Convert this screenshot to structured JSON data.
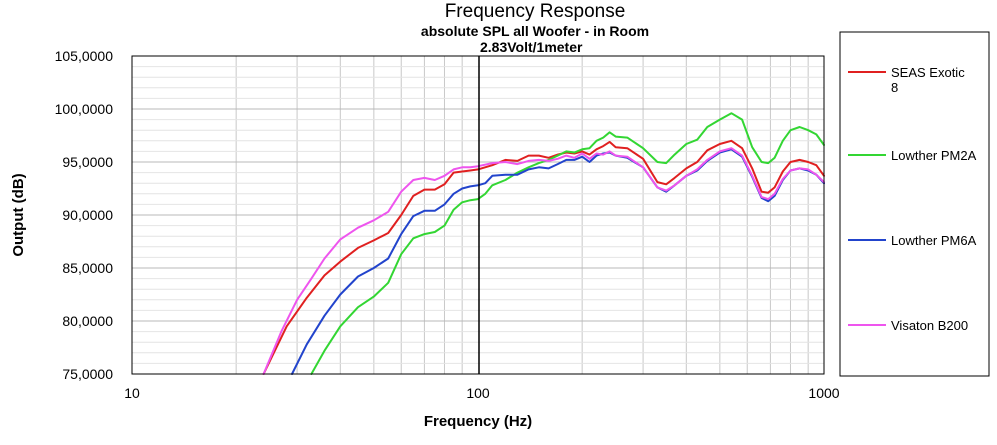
{
  "chart_data": {
    "type": "line",
    "title": "Frequency Response",
    "subtitle": "absolute SPL all Woofer - in Room",
    "annotation": "2.83Volt/1meter",
    "xlabel": "Frequency (Hz)",
    "ylabel": "Output (dB)",
    "x_scale": "log",
    "xlim": [
      10,
      1000
    ],
    "ylim": [
      75,
      105
    ],
    "x_ticks": [
      10,
      100,
      1000
    ],
    "x_tick_labels": [
      "10",
      "100",
      "1000"
    ],
    "y_ticks": [
      75,
      80,
      85,
      90,
      95,
      100,
      105
    ],
    "y_tick_labels": [
      "75,0000",
      "80,0000",
      "85,0000",
      "90,0000",
      "95,0000",
      "100,0000",
      "105,0000"
    ],
    "grid": true,
    "legend_position": "right",
    "series": [
      {
        "name": "SEAS  Exotic 8",
        "color": "#e02020",
        "x": [
          24,
          28,
          32,
          36,
          40,
          45,
          50,
          55,
          60,
          65,
          70,
          75,
          80,
          85,
          90,
          95,
          100,
          110,
          120,
          130,
          140,
          150,
          160,
          170,
          180,
          190,
          200,
          210,
          220,
          230,
          240,
          250,
          270,
          300,
          330,
          350,
          370,
          400,
          430,
          460,
          500,
          540,
          580,
          620,
          660,
          690,
          720,
          760,
          800,
          850,
          900,
          950,
          1000
        ],
        "y": [
          75.0,
          79.5,
          82.2,
          84.3,
          85.6,
          86.9,
          87.6,
          88.3,
          90.0,
          91.8,
          92.4,
          92.4,
          92.9,
          94.0,
          94.1,
          94.2,
          94.3,
          94.7,
          95.2,
          95.1,
          95.6,
          95.6,
          95.4,
          95.7,
          95.9,
          95.8,
          96.0,
          95.7,
          96.2,
          96.5,
          96.9,
          96.4,
          96.3,
          95.3,
          93.1,
          92.9,
          93.5,
          94.4,
          95.0,
          96.1,
          96.7,
          97.0,
          96.3,
          94.4,
          92.2,
          92.1,
          92.6,
          94.1,
          95.0,
          95.2,
          95.0,
          94.7,
          93.7
        ]
      },
      {
        "name": "Lowther PM2A",
        "color": "#33d633",
        "x": [
          33,
          36,
          40,
          45,
          50,
          55,
          60,
          65,
          70,
          75,
          80,
          85,
          90,
          95,
          100,
          105,
          110,
          120,
          130,
          140,
          150,
          160,
          170,
          180,
          190,
          200,
          210,
          220,
          230,
          240,
          250,
          270,
          300,
          330,
          350,
          370,
          400,
          430,
          460,
          500,
          540,
          580,
          620,
          660,
          690,
          720,
          760,
          800,
          850,
          900,
          950,
          1000
        ],
        "y": [
          75.0,
          77.2,
          79.5,
          81.3,
          82.3,
          83.6,
          86.3,
          87.8,
          88.2,
          88.4,
          89.0,
          90.5,
          91.2,
          91.4,
          91.5,
          92.0,
          92.8,
          93.3,
          94.0,
          94.5,
          94.9,
          95.2,
          95.6,
          96.0,
          95.9,
          96.2,
          96.3,
          97.0,
          97.3,
          97.8,
          97.4,
          97.3,
          96.3,
          95.0,
          94.9,
          95.7,
          96.7,
          97.1,
          98.3,
          99.0,
          99.6,
          99.0,
          96.4,
          95.0,
          94.9,
          95.4,
          97.0,
          98.0,
          98.3,
          98.0,
          97.6,
          96.6
        ]
      },
      {
        "name": "Lowther PM6A",
        "color": "#2244cc",
        "x": [
          29,
          32,
          36,
          40,
          45,
          50,
          55,
          60,
          65,
          70,
          75,
          80,
          85,
          90,
          95,
          100,
          105,
          110,
          120,
          130,
          140,
          150,
          160,
          170,
          180,
          190,
          200,
          210,
          220,
          230,
          240,
          250,
          270,
          300,
          330,
          350,
          370,
          400,
          430,
          460,
          500,
          540,
          580,
          620,
          660,
          690,
          720,
          760,
          800,
          850,
          900,
          950,
          1000
        ],
        "y": [
          75.0,
          77.8,
          80.5,
          82.5,
          84.2,
          85.0,
          85.9,
          88.2,
          89.9,
          90.4,
          90.4,
          91.0,
          92.0,
          92.5,
          92.7,
          92.8,
          93.0,
          93.7,
          93.8,
          93.8,
          94.3,
          94.5,
          94.4,
          94.8,
          95.2,
          95.2,
          95.5,
          95.0,
          95.6,
          95.8,
          95.9,
          95.6,
          95.4,
          94.5,
          92.6,
          92.2,
          92.8,
          93.7,
          94.2,
          95.1,
          95.9,
          96.2,
          95.5,
          93.6,
          91.6,
          91.3,
          91.8,
          93.3,
          94.2,
          94.4,
          94.2,
          93.8,
          93.0
        ]
      },
      {
        "name": "Visaton B200",
        "color": "#ee55ee",
        "x": [
          24,
          27,
          30,
          33,
          36,
          40,
          45,
          50,
          55,
          60,
          65,
          70,
          75,
          80,
          85,
          90,
          95,
          100,
          110,
          120,
          130,
          140,
          150,
          160,
          170,
          180,
          190,
          200,
          210,
          220,
          230,
          240,
          250,
          270,
          300,
          330,
          350,
          370,
          400,
          430,
          460,
          500,
          540,
          580,
          620,
          660,
          690,
          720,
          760,
          800,
          850,
          900,
          950,
          1000
        ],
        "y": [
          75.0,
          79.0,
          82.0,
          84.0,
          85.9,
          87.7,
          88.8,
          89.5,
          90.3,
          92.2,
          93.3,
          93.5,
          93.3,
          93.7,
          94.3,
          94.5,
          94.5,
          94.6,
          94.9,
          95.0,
          94.8,
          95.1,
          95.2,
          95.1,
          95.3,
          95.6,
          95.4,
          95.8,
          95.3,
          95.8,
          95.7,
          96.0,
          95.6,
          95.5,
          94.5,
          92.6,
          92.3,
          92.8,
          93.7,
          94.3,
          95.2,
          96.0,
          96.3,
          95.6,
          93.7,
          91.7,
          91.5,
          92.0,
          93.4,
          94.2,
          94.4,
          94.3,
          93.8,
          93.1
        ]
      }
    ]
  }
}
